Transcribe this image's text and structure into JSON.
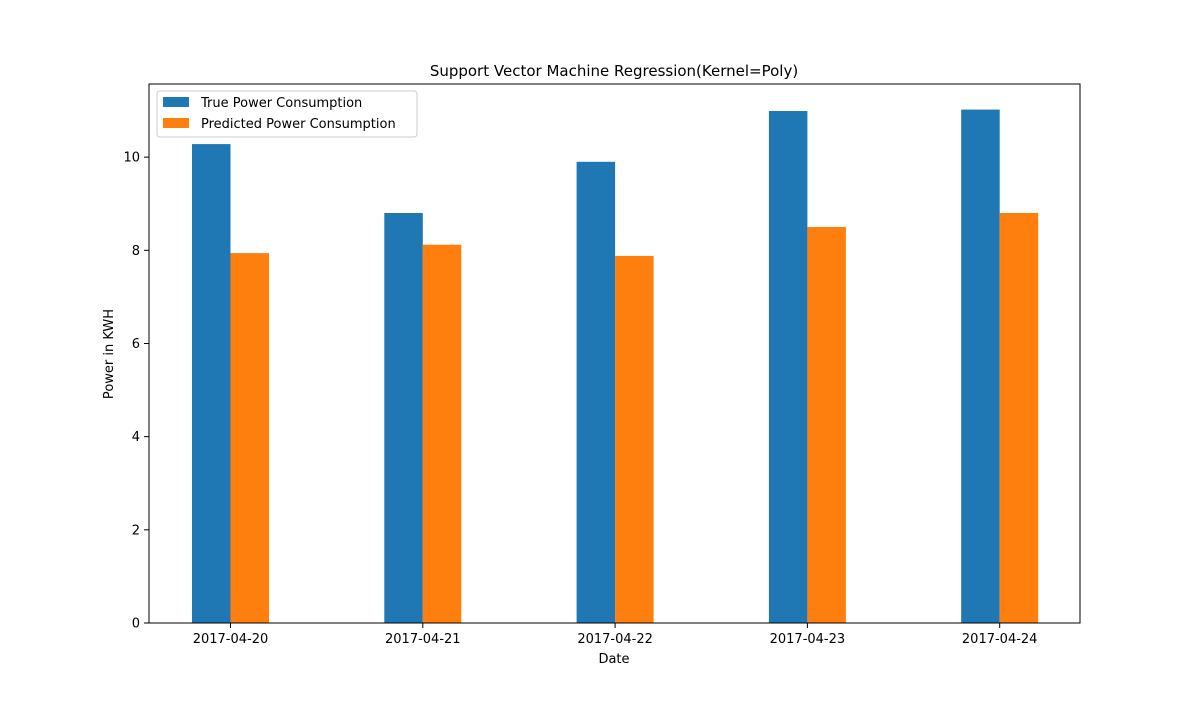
{
  "chart_data": {
    "type": "bar",
    "title": "Support Vector Machine Regression(Kernel=Poly)",
    "xlabel": "Date",
    "ylabel": "Power in KWH",
    "categories": [
      "2017-04-20",
      "2017-04-21",
      "2017-04-22",
      "2017-04-23",
      "2017-04-24"
    ],
    "series": [
      {
        "name": "True Power Consumption",
        "color": "#1f77b4",
        "values": [
          10.28,
          8.8,
          9.9,
          10.99,
          11.02
        ]
      },
      {
        "name": "Predicted Power Consumption",
        "color": "#ff7f0e",
        "values": [
          7.94,
          8.12,
          7.88,
          8.5,
          8.8
        ]
      }
    ],
    "ylim": [
      0,
      11.57
    ],
    "yticks": [
      0,
      2,
      4,
      6,
      8,
      10
    ],
    "ytick_labels": [
      "0",
      "2",
      "4",
      "6",
      "8",
      "10"
    ],
    "grid": false,
    "legend_position": "top-left"
  }
}
